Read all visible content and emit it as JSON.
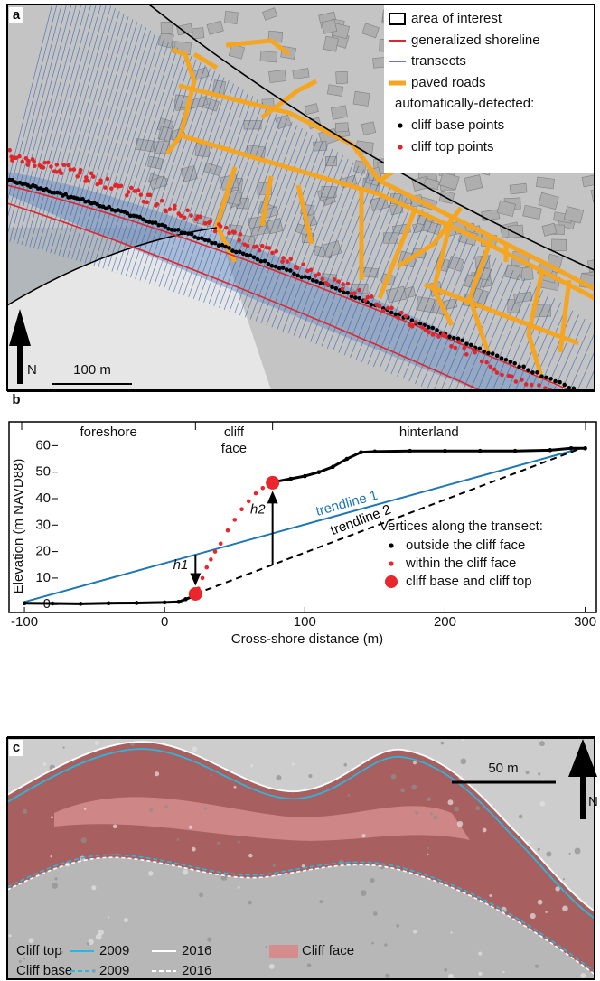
{
  "panels": [
    {
      "label": "a",
      "legend": [
        "area of interest",
        "generalized shoreline",
        "transects",
        "paved roads"
      ],
      "legend_heading": "automatically-detected:",
      "points_legend": [
        "cliff base points",
        "cliff top points"
      ],
      "scale_bar": "100 m",
      "north": "N"
    },
    {
      "label": "b"
    },
    {
      "label": "c",
      "scale_bar": "50 m",
      "north": "N",
      "legend": {
        "rows": [
          "Cliff top",
          "Cliff base"
        ],
        "years": [
          "2009",
          "2016"
        ],
        "face": "Cliff face"
      }
    }
  ],
  "chart_data": {
    "type": "scatter",
    "xlabel": "Cross-shore distance (m)",
    "ylabel": "Elevation (m NAVD88)",
    "xlim": [
      -111,
      308
    ],
    "ylim": [
      -3,
      69
    ],
    "xticks": [
      -100,
      0,
      100,
      200,
      300
    ],
    "yticks": [
      0,
      10,
      20,
      30,
      40,
      50,
      60
    ],
    "regions": [
      "foreshore",
      "cliff face",
      "hinterland"
    ],
    "legend_title": "Vertices along the transect:",
    "series": [
      {
        "name": "outside the cliff face",
        "color": "#000000",
        "connect": true,
        "x": [
          -100,
          -80,
          -60,
          -40,
          -20,
          0,
          10,
          15,
          20,
          null,
          80,
          90,
          100,
          110,
          120,
          130,
          140,
          150,
          175,
          200,
          225,
          250,
          275,
          290,
          300
        ],
        "values": [
          0.5,
          0.4,
          0.3,
          0.5,
          0.6,
          0.8,
          1,
          2,
          3,
          null,
          46.5,
          47.5,
          48.5,
          50,
          52,
          55,
          57.5,
          57.8,
          58,
          58,
          58,
          58,
          58.3,
          59,
          59
        ]
      },
      {
        "name": "within the cliff face",
        "color": "#e8262b",
        "connect": false,
        "x": [
          24,
          27,
          30,
          33,
          36,
          40,
          45,
          50,
          55,
          60,
          65,
          70,
          75
        ],
        "values": [
          6,
          10,
          14,
          17,
          20,
          23,
          28,
          32,
          36,
          39,
          42,
          44,
          45.5
        ]
      },
      {
        "name": "cliff base and cliff top",
        "color": "#e8262b",
        "connect": false,
        "big": true,
        "x": [
          22,
          77
        ],
        "values": [
          4,
          46
        ]
      }
    ],
    "trendlines": [
      {
        "name": "trendline 1",
        "color": "#1f77b4",
        "dashed": false,
        "x": [
          -100,
          297
        ],
        "values": [
          1,
          59
        ]
      },
      {
        "name": "trendline 2",
        "color": "#000000",
        "dashed": true,
        "x": [
          22,
          297
        ],
        "values": [
          4,
          59
        ]
      }
    ],
    "annotations": [
      "h1",
      "h2"
    ]
  }
}
